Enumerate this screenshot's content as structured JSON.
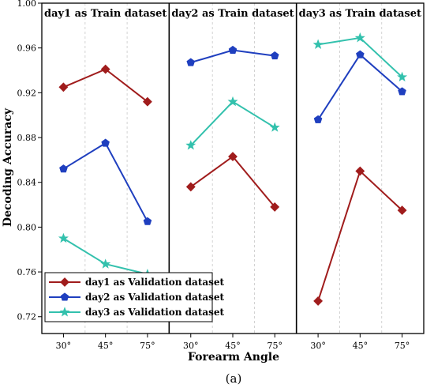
{
  "chart_data": {
    "type": "line",
    "xlabel": "Forearm Angle",
    "ylabel": "Decoding Accuracy",
    "caption": "(a)",
    "categories": [
      "30°",
      "45°",
      "75°"
    ],
    "yticks": [
      "1.00",
      "0.96",
      "0.92",
      "0.88",
      "0.84",
      "0.80",
      "0.76",
      "0.72"
    ],
    "ytick_values": [
      1.0,
      0.96,
      0.92,
      0.88,
      0.84,
      0.8,
      0.76,
      0.72
    ],
    "ylim": [
      0.705,
      1.0
    ],
    "grid": "vertical dashed",
    "legend_position": "bottom-left",
    "series_styles": [
      {
        "name": "day1 as Validation dataset",
        "color": "#a01c1c",
        "marker": "diamond"
      },
      {
        "name": "day2 as Validation dataset",
        "color": "#1f3fbf",
        "marker": "pentagon"
      },
      {
        "name": "day3 as Validation dataset",
        "color": "#33c1ad",
        "marker": "star"
      }
    ],
    "panels": [
      {
        "title": "day1 as Train dataset",
        "series": [
          {
            "values": [
              0.925,
              0.941,
              0.912
            ]
          },
          {
            "values": [
              0.852,
              0.875,
              0.805
            ]
          },
          {
            "values": [
              0.79,
              0.767,
              0.758
            ]
          }
        ]
      },
      {
        "title": "day2 as Train dataset",
        "series": [
          {
            "values": [
              0.836,
              0.863,
              0.818
            ]
          },
          {
            "values": [
              0.947,
              0.958,
              0.953
            ]
          },
          {
            "values": [
              0.873,
              0.912,
              0.889
            ]
          }
        ]
      },
      {
        "title": "day3 as Train dataset",
        "series": [
          {
            "values": [
              0.734,
              0.85,
              0.815
            ]
          },
          {
            "values": [
              0.896,
              0.954,
              0.921
            ]
          },
          {
            "values": [
              0.963,
              0.969,
              0.934
            ]
          }
        ]
      }
    ]
  }
}
